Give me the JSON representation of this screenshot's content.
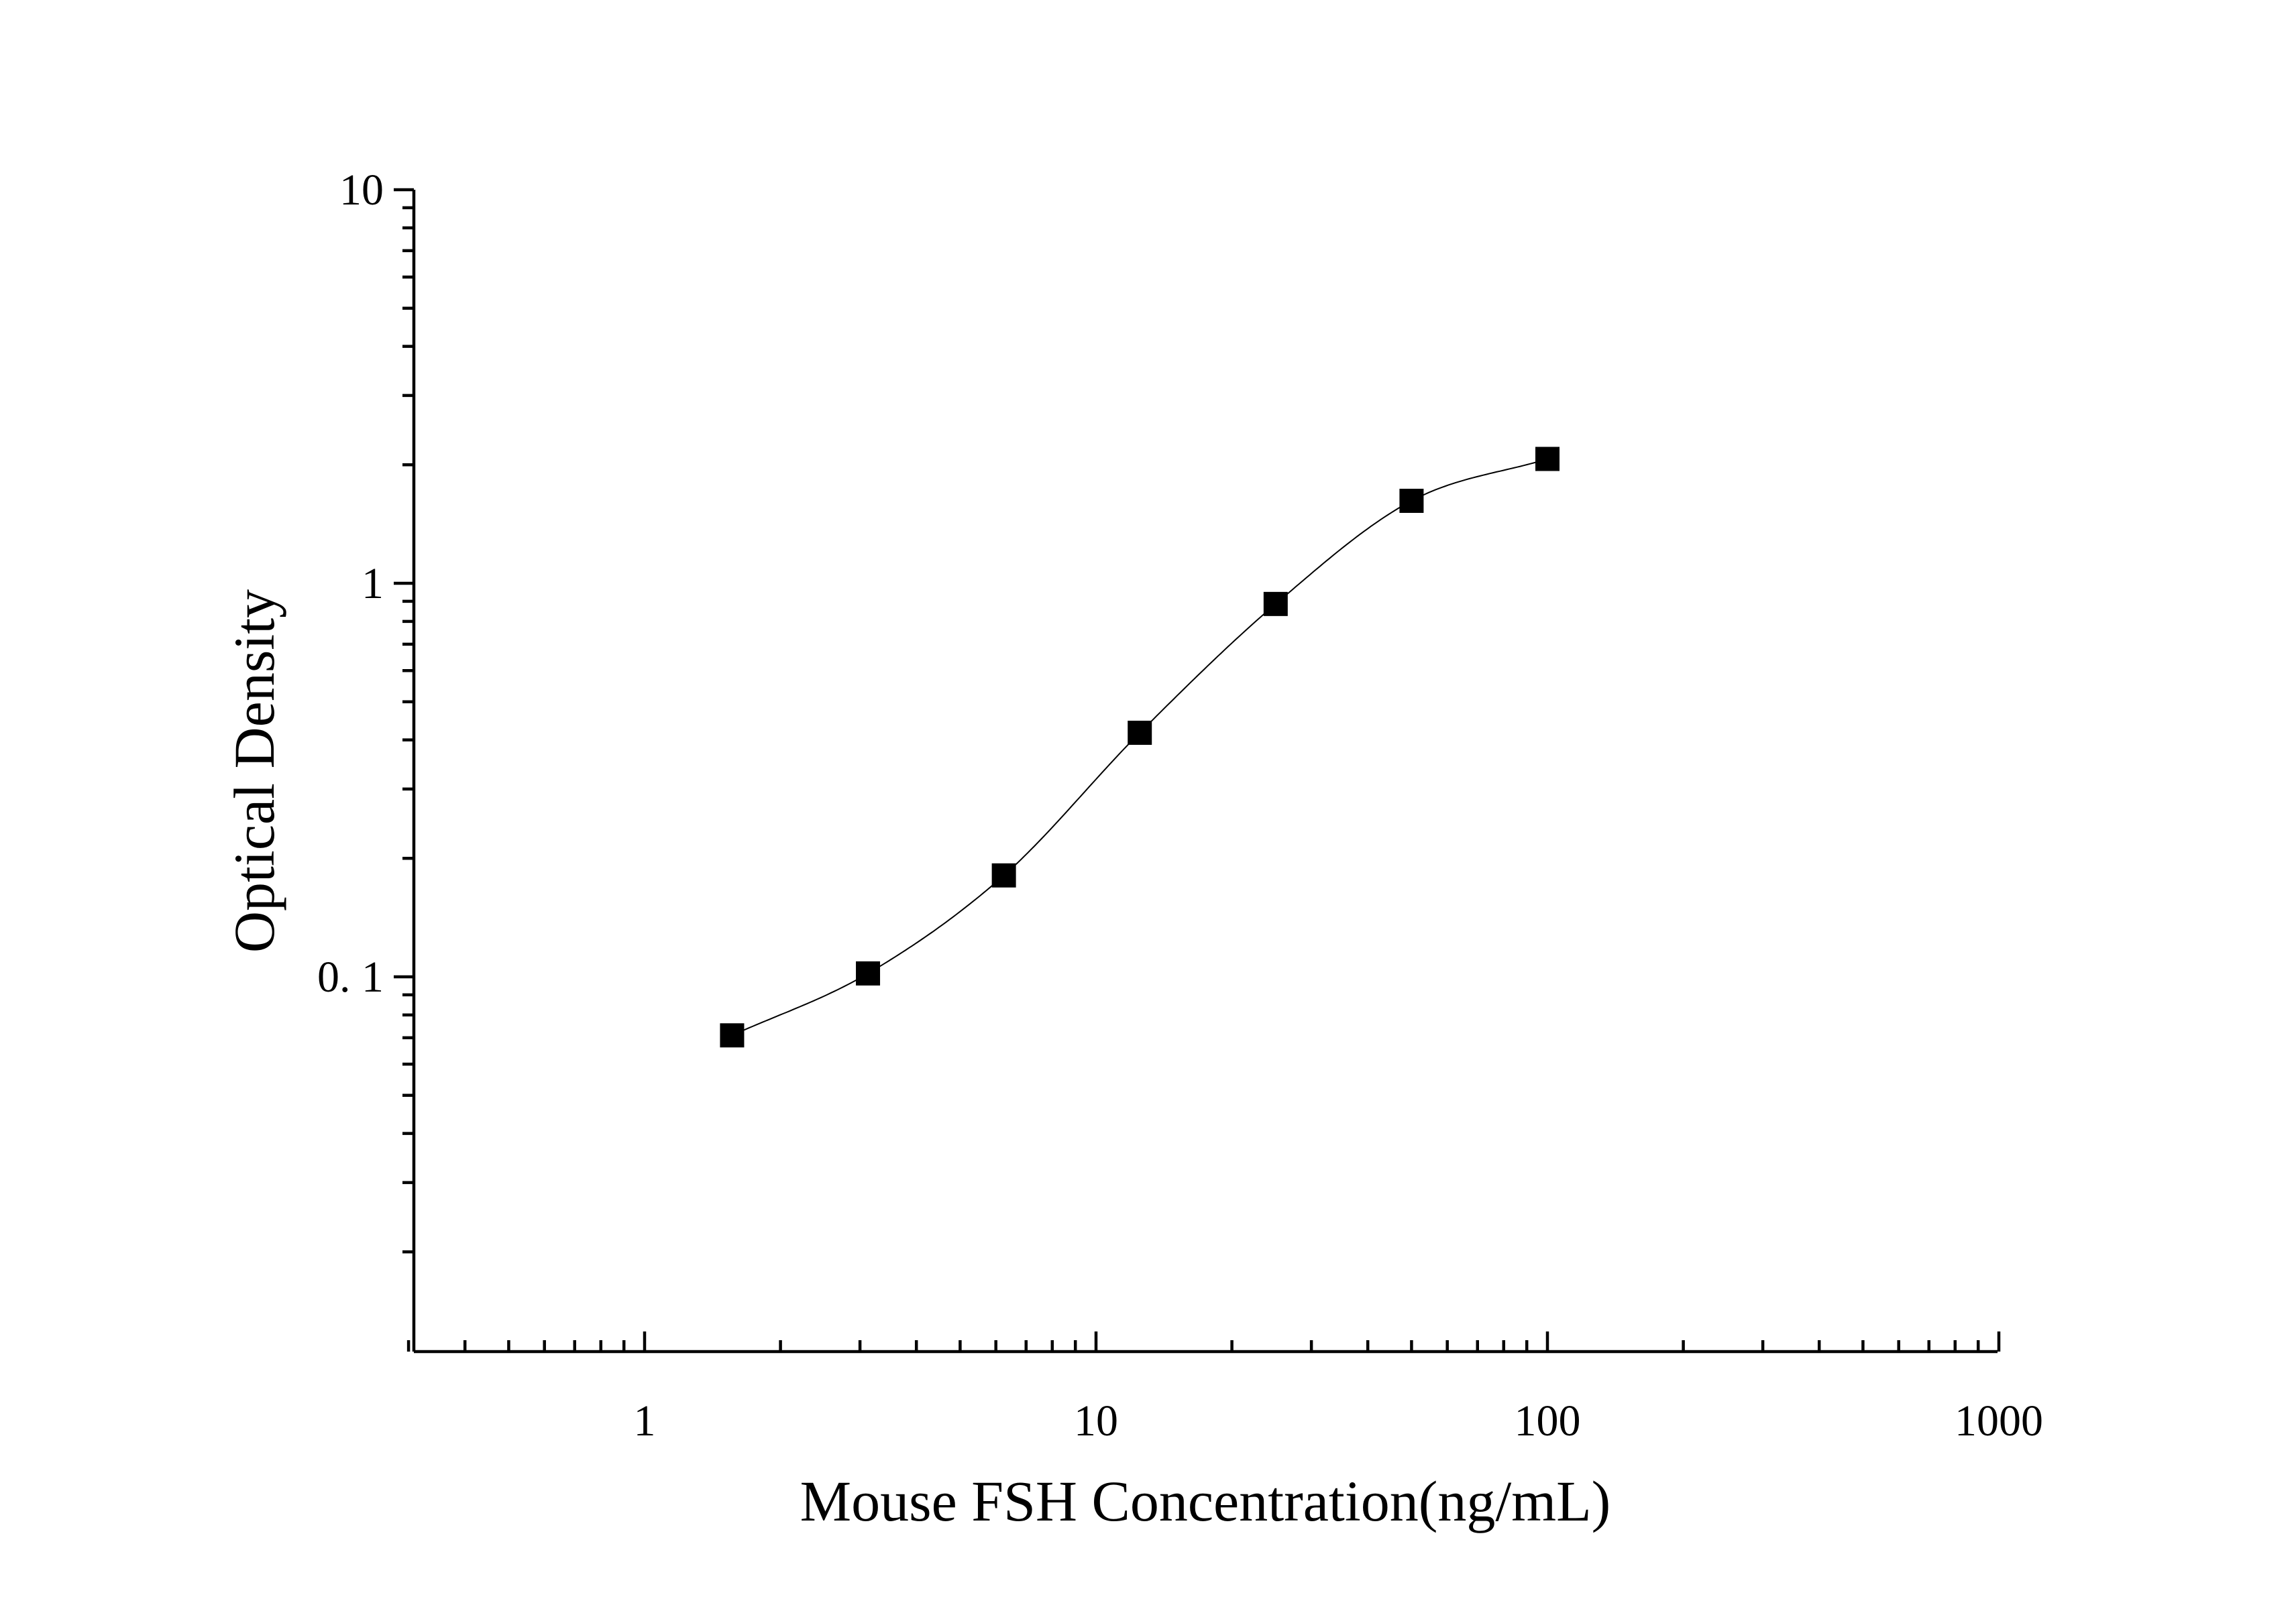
{
  "chart_data": {
    "type": "scatter",
    "title": "",
    "xlabel": "Mouse FSH Concentration(ng/mL)",
    "ylabel": "Optical Density",
    "x_scale": "log",
    "y_scale": "log",
    "xlim": [
      0.3,
      1000
    ],
    "ylim": [
      0.012,
      10
    ],
    "x_ticks": [
      {
        "value": 1,
        "label": "1"
      },
      {
        "value": 10,
        "label": "10"
      },
      {
        "value": 100,
        "label": "100"
      },
      {
        "value": 1000,
        "label": "1000"
      }
    ],
    "y_ticks": [
      {
        "value": 0.1,
        "label": "0. 1"
      },
      {
        "value": 1,
        "label": "1"
      },
      {
        "value": 10,
        "label": "10"
      }
    ],
    "grid": false,
    "legend": "none",
    "marker": "square",
    "fit_line": true,
    "colors": {
      "marker": "#000000",
      "curve": "#000000",
      "axis": "#000000"
    },
    "points": [
      {
        "x": 1.5625,
        "y": 0.071
      },
      {
        "x": 3.125,
        "y": 0.102
      },
      {
        "x": 6.25,
        "y": 0.181
      },
      {
        "x": 12.5,
        "y": 0.417
      },
      {
        "x": 25,
        "y": 0.886
      },
      {
        "x": 50,
        "y": 1.62
      },
      {
        "x": 100,
        "y": 2.07
      }
    ]
  }
}
